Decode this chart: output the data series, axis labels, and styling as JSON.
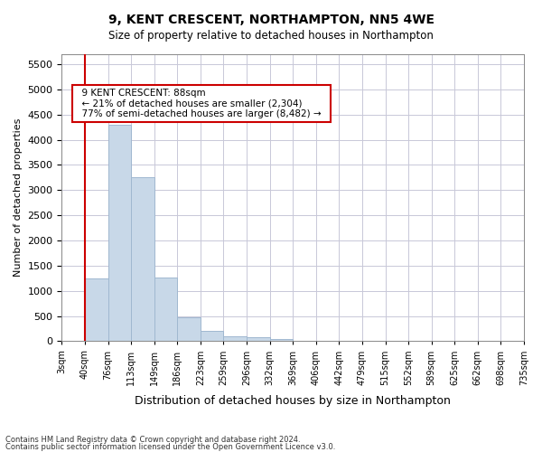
{
  "title": "9, KENT CRESCENT, NORTHAMPTON, NN5 4WE",
  "subtitle": "Size of property relative to detached houses in Northampton",
  "xlabel": "Distribution of detached houses by size in Northampton",
  "ylabel": "Number of detached properties",
  "footnote1": "Contains HM Land Registry data © Crown copyright and database right 2024.",
  "footnote2": "Contains public sector information licensed under the Open Government Licence v3.0.",
  "bin_labels": [
    "3sqm",
    "40sqm",
    "76sqm",
    "113sqm",
    "149sqm",
    "186sqm",
    "223sqm",
    "259sqm",
    "296sqm",
    "332sqm",
    "369sqm",
    "406sqm",
    "442sqm",
    "479sqm",
    "515sqm",
    "552sqm",
    "589sqm",
    "625sqm",
    "662sqm",
    "698sqm",
    "735sqm"
  ],
  "bar_values": [
    0,
    1250,
    4300,
    3250,
    1270,
    480,
    200,
    100,
    80,
    50,
    0,
    0,
    0,
    0,
    0,
    0,
    0,
    0,
    0,
    0
  ],
  "bar_color": "#c8d8e8",
  "bar_edge_color": "#a0b8d0",
  "red_line_x": 1,
  "ylim": [
    0,
    5700
  ],
  "yticks": [
    0,
    500,
    1000,
    1500,
    2000,
    2500,
    3000,
    3500,
    4000,
    4500,
    5000,
    5500
  ],
  "annotation_title": "9 KENT CRESCENT: 88sqm",
  "annotation_line1": "← 21% of detached houses are smaller (2,304)",
  "annotation_line2": "77% of semi-detached houses are larger (8,482) →",
  "annotation_box_color": "#ffffff",
  "annotation_border_color": "#cc0000",
  "red_line_color": "#cc0000"
}
